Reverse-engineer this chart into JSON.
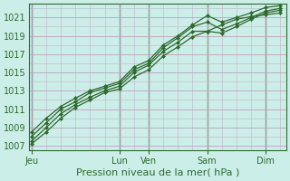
{
  "bg_color": "#cceee8",
  "line_color": "#2d6a2d",
  "marker_color": "#2d6a2d",
  "xlabel": "Pression niveau de la mer( hPa )",
  "ylim": [
    1006.5,
    1022.5
  ],
  "yticks": [
    1007,
    1009,
    1011,
    1013,
    1015,
    1017,
    1019,
    1021
  ],
  "xtick_labels": [
    "Jeu",
    "Lun",
    "Ven",
    "Sam",
    "Dim"
  ],
  "xtick_positions": [
    0.0,
    3.0,
    4.0,
    6.0,
    8.0
  ],
  "xlim": [
    -0.1,
    8.7
  ],
  "vline_positions": [
    0.0,
    3.0,
    4.0,
    6.0,
    8.0
  ],
  "series": [
    {
      "x": [
        0.0,
        0.5,
        1.0,
        1.5,
        2.0,
        2.5,
        3.0,
        3.5,
        4.0,
        4.5,
        5.0,
        5.5,
        6.0,
        6.5,
        7.0,
        7.5,
        8.0,
        8.5
      ],
      "y": [
        1007.2,
        1008.5,
        1010.0,
        1011.2,
        1012.0,
        1012.8,
        1013.2,
        1014.5,
        1015.3,
        1016.8,
        1017.8,
        1018.9,
        1019.5,
        1020.2,
        1020.8,
        1021.1,
        1021.3,
        1021.5
      ]
    },
    {
      "x": [
        0.0,
        0.5,
        1.0,
        1.5,
        2.0,
        2.5,
        3.0,
        3.5,
        4.0,
        4.5,
        5.0,
        5.5,
        6.0,
        6.5,
        7.0,
        7.5,
        8.0,
        8.5
      ],
      "y": [
        1007.5,
        1009.0,
        1010.5,
        1011.5,
        1012.3,
        1013.0,
        1013.5,
        1015.0,
        1015.8,
        1017.3,
        1018.3,
        1019.5,
        1019.5,
        1019.3,
        1020.0,
        1020.8,
        1021.5,
        1021.8
      ]
    },
    {
      "x": [
        0.0,
        0.5,
        1.0,
        1.5,
        2.0,
        2.5,
        3.0,
        3.5,
        4.0,
        4.5,
        5.0,
        5.5,
        6.0,
        6.5,
        7.0,
        7.5,
        8.0,
        8.5
      ],
      "y": [
        1008.0,
        1009.5,
        1011.0,
        1011.8,
        1012.8,
        1013.3,
        1013.8,
        1015.3,
        1016.0,
        1017.7,
        1018.8,
        1020.0,
        1020.5,
        1019.7,
        1020.3,
        1021.0,
        1021.7,
        1022.0
      ]
    },
    {
      "x": [
        0.0,
        0.5,
        1.0,
        1.5,
        2.0,
        2.5,
        3.0,
        3.5,
        4.0,
        4.5,
        5.0,
        5.5,
        6.0,
        6.5,
        7.0,
        7.5,
        8.0,
        8.5
      ],
      "y": [
        1008.5,
        1010.0,
        1011.3,
        1012.2,
        1013.0,
        1013.5,
        1014.0,
        1015.6,
        1016.3,
        1018.0,
        1019.0,
        1020.2,
        1021.2,
        1020.5,
        1021.0,
        1021.5,
        1022.1,
        1022.3
      ]
    }
  ],
  "grid_major_color": "#c0a0c0",
  "grid_minor_color": "#c8b0c8",
  "spine_color": "#2d6a2d",
  "tick_color": "#2d6a2d",
  "label_fontsize": 7,
  "xlabel_fontsize": 8,
  "ytick_fontsize": 7
}
